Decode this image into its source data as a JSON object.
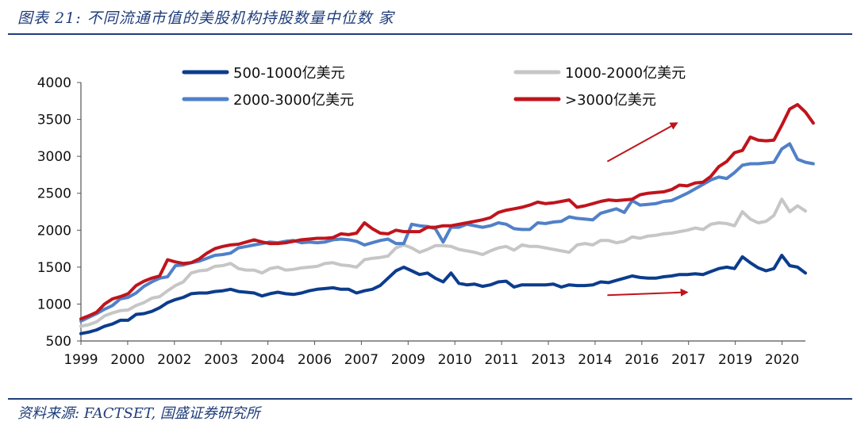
{
  "header": {
    "title": "图表 21:  不同流通市值的美股机构持股数量中位数  家"
  },
  "footer": {
    "source": "资料来源: FACTSET, 国盛证券研究所"
  },
  "chart_data": {
    "type": "line",
    "title": "",
    "xlabel": "",
    "ylabel": "",
    "ylim": [
      500,
      4000
    ],
    "yticks": [
      500,
      1000,
      1500,
      2000,
      2500,
      3000,
      3500,
      4000
    ],
    "xtick_labels": [
      "1999",
      "2000",
      "2002",
      "2003",
      "2004",
      "2006",
      "2007",
      "2009",
      "2010",
      "2011",
      "2013",
      "2014",
      "2016",
      "2017",
      "2019",
      "2020"
    ],
    "legend": "top",
    "grid": false,
    "series": [
      {
        "name": "500-1000亿美元",
        "color": "#0c3c8c",
        "values": [
          600,
          620,
          650,
          700,
          730,
          780,
          780,
          860,
          870,
          900,
          950,
          1020,
          1060,
          1090,
          1140,
          1150,
          1150,
          1170,
          1180,
          1200,
          1170,
          1160,
          1150,
          1110,
          1140,
          1160,
          1140,
          1130,
          1150,
          1180,
          1200,
          1210,
          1220,
          1200,
          1200,
          1150,
          1180,
          1200,
          1250,
          1350,
          1450,
          1500,
          1450,
          1400,
          1420,
          1350,
          1300,
          1420,
          1280,
          1260,
          1270,
          1240,
          1260,
          1300,
          1310,
          1230,
          1260,
          1260,
          1260,
          1260,
          1270,
          1230,
          1260,
          1250,
          1250,
          1260,
          1300,
          1290,
          1320,
          1350,
          1380,
          1360,
          1350,
          1350,
          1370,
          1380,
          1400,
          1400,
          1410,
          1400,
          1440,
          1480,
          1500,
          1480,
          1640,
          1560,
          1490,
          1450,
          1480,
          1660,
          1520,
          1500,
          1420
        ]
      },
      {
        "name": "1000-2000亿美元",
        "color": "#c6c6c6",
        "values": [
          700,
          720,
          760,
          840,
          880,
          910,
          920,
          980,
          1020,
          1080,
          1100,
          1180,
          1250,
          1300,
          1420,
          1450,
          1460,
          1510,
          1520,
          1550,
          1480,
          1460,
          1460,
          1420,
          1480,
          1500,
          1460,
          1470,
          1490,
          1500,
          1510,
          1550,
          1560,
          1530,
          1520,
          1500,
          1600,
          1620,
          1630,
          1650,
          1760,
          1800,
          1760,
          1700,
          1740,
          1790,
          1790,
          1780,
          1740,
          1720,
          1700,
          1670,
          1720,
          1760,
          1780,
          1730,
          1800,
          1780,
          1780,
          1760,
          1740,
          1720,
          1700,
          1800,
          1820,
          1800,
          1860,
          1860,
          1830,
          1850,
          1910,
          1890,
          1920,
          1930,
          1950,
          1960,
          1980,
          2000,
          2030,
          2010,
          2080,
          2100,
          2090,
          2060,
          2250,
          2150,
          2100,
          2120,
          2200,
          2420,
          2250,
          2330,
          2260
        ]
      },
      {
        "name": "2000-3000亿美元",
        "color": "#5080c8",
        "values": [
          770,
          820,
          870,
          930,
          980,
          1070,
          1090,
          1150,
          1240,
          1300,
          1350,
          1370,
          1520,
          1530,
          1560,
          1580,
          1620,
          1660,
          1670,
          1690,
          1760,
          1780,
          1800,
          1820,
          1840,
          1830,
          1850,
          1860,
          1830,
          1840,
          1830,
          1840,
          1870,
          1880,
          1870,
          1850,
          1800,
          1830,
          1860,
          1880,
          1820,
          1820,
          2080,
          2060,
          2050,
          2020,
          1840,
          2040,
          2040,
          2080,
          2060,
          2040,
          2060,
          2100,
          2080,
          2020,
          2010,
          2010,
          2100,
          2090,
          2110,
          2120,
          2180,
          2160,
          2150,
          2140,
          2230,
          2260,
          2290,
          2240,
          2400,
          2340,
          2350,
          2360,
          2390,
          2400,
          2450,
          2500,
          2560,
          2620,
          2680,
          2720,
          2700,
          2780,
          2880,
          2900,
          2900,
          2910,
          2920,
          3100,
          3170,
          2960,
          2920,
          2900
        ]
      },
      {
        "name": ">3000亿美元",
        "color": "#c0141c",
        "values": [
          800,
          840,
          890,
          1000,
          1070,
          1100,
          1140,
          1250,
          1310,
          1350,
          1380,
          1600,
          1570,
          1550,
          1560,
          1610,
          1690,
          1750,
          1780,
          1800,
          1810,
          1840,
          1870,
          1840,
          1820,
          1820,
          1830,
          1850,
          1870,
          1880,
          1890,
          1890,
          1900,
          1950,
          1940,
          1960,
          2100,
          2020,
          1960,
          1950,
          2000,
          1980,
          1980,
          1980,
          2040,
          2040,
          2060,
          2060,
          2080,
          2100,
          2120,
          2140,
          2170,
          2240,
          2270,
          2290,
          2310,
          2340,
          2380,
          2360,
          2370,
          2390,
          2410,
          2310,
          2330,
          2360,
          2390,
          2410,
          2400,
          2410,
          2420,
          2480,
          2500,
          2510,
          2520,
          2550,
          2610,
          2600,
          2640,
          2650,
          2730,
          2860,
          2930,
          3050,
          3080,
          3260,
          3220,
          3210,
          3220,
          3420,
          3640,
          3700,
          3600,
          3450
        ]
      }
    ],
    "annotations": [
      {
        "type": "arrow",
        "color": "#c0141c",
        "from": [
          2014.55,
          2930
        ],
        "to": [
          2016.6,
          3450
        ]
      },
      {
        "type": "arrow",
        "color": "#c0141c",
        "from": [
          2014.55,
          1120
        ],
        "to": [
          2016.9,
          1160
        ]
      }
    ]
  }
}
